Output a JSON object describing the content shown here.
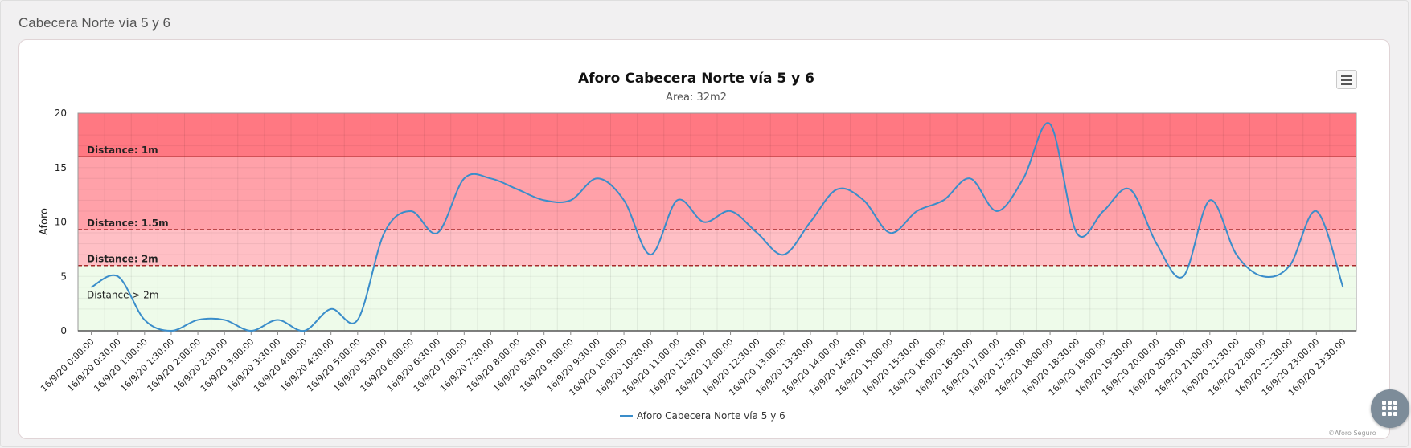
{
  "panel": {
    "title": "Cabecera Norte vía 5 y 6"
  },
  "credit": "©Aforo Seguro",
  "icons": {
    "menu": "hamburger-menu-icon",
    "apps": "grid-apps-icon"
  },
  "colors": {
    "line": "#3a8dca",
    "band_red_top": "#ff7882",
    "band_red": "#ffa1a9",
    "band_red_light": "#ffbfc5",
    "band_green": "#eefbea",
    "threshold": "#a52a2a"
  },
  "chart_data": {
    "type": "line",
    "title": "Aforo Cabecera Norte vía 5 y 6",
    "subtitle": "Area: 32m2",
    "xlabel": "",
    "ylabel": "Aforo",
    "ylim": [
      0,
      20
    ],
    "yticks": [
      0,
      5,
      10,
      15,
      20
    ],
    "grid": true,
    "legend": "bottom-center",
    "categories": [
      "16/9/20 0:00:00",
      "16/9/20 0:30:00",
      "16/9/20 1:00:00",
      "16/9/20 1:30:00",
      "16/9/20 2:00:00",
      "16/9/20 2:30:00",
      "16/9/20 3:00:00",
      "16/9/20 3:30:00",
      "16/9/20 4:00:00",
      "16/9/20 4:30:00",
      "16/9/20 5:00:00",
      "16/9/20 5:30:00",
      "16/9/20 6:00:00",
      "16/9/20 6:30:00",
      "16/9/20 7:00:00",
      "16/9/20 7:30:00",
      "16/9/20 8:00:00",
      "16/9/20 8:30:00",
      "16/9/20 9:00:00",
      "16/9/20 9:30:00",
      "16/9/20 10:00:00",
      "16/9/20 10:30:00",
      "16/9/20 11:00:00",
      "16/9/20 11:30:00",
      "16/9/20 12:00:00",
      "16/9/20 12:30:00",
      "16/9/20 13:00:00",
      "16/9/20 13:30:00",
      "16/9/20 14:00:00",
      "16/9/20 14:30:00",
      "16/9/20 15:00:00",
      "16/9/20 15:30:00",
      "16/9/20 16:00:00",
      "16/9/20 16:30:00",
      "16/9/20 17:00:00",
      "16/9/20 17:30:00",
      "16/9/20 18:00:00",
      "16/9/20 18:30:00",
      "16/9/20 19:00:00",
      "16/9/20 19:30:00",
      "16/9/20 20:00:00",
      "16/9/20 20:30:00",
      "16/9/20 21:00:00",
      "16/9/20 21:30:00",
      "16/9/20 22:00:00",
      "16/9/20 22:30:00",
      "16/9/20 23:00:00",
      "16/9/20 23:30:00"
    ],
    "series": [
      {
        "name": "Aforo Cabecera Norte vía 5 y 6",
        "values": [
          4,
          5,
          1,
          0,
          1,
          1,
          0,
          1,
          0,
          2,
          1,
          9,
          11,
          9,
          14,
          14,
          13,
          12,
          12,
          14,
          12,
          7,
          12,
          10,
          11,
          9,
          7,
          10,
          13,
          12,
          9,
          11,
          12,
          14,
          11,
          14,
          19,
          9,
          11,
          13,
          8,
          5,
          12,
          7,
          5,
          6,
          11,
          4
        ]
      }
    ],
    "bands": [
      {
        "from": 16,
        "to": 20,
        "color": "#ff7882"
      },
      {
        "from": 9.3,
        "to": 16,
        "color": "#ffa1a9"
      },
      {
        "from": 6,
        "to": 9.3,
        "color": "#ffbfc5"
      },
      {
        "from": 0,
        "to": 6,
        "color": "#eefbea"
      }
    ],
    "plot_lines": [
      {
        "value": 16,
        "label": "Distance: 1m",
        "dash": false
      },
      {
        "value": 9.3,
        "label": "Distance: 1.5m",
        "dash": true
      },
      {
        "value": 6,
        "label": "Distance: 2m",
        "dash": true
      }
    ],
    "band_label": {
      "value": 3.3,
      "label": "Distance > 2m"
    }
  }
}
